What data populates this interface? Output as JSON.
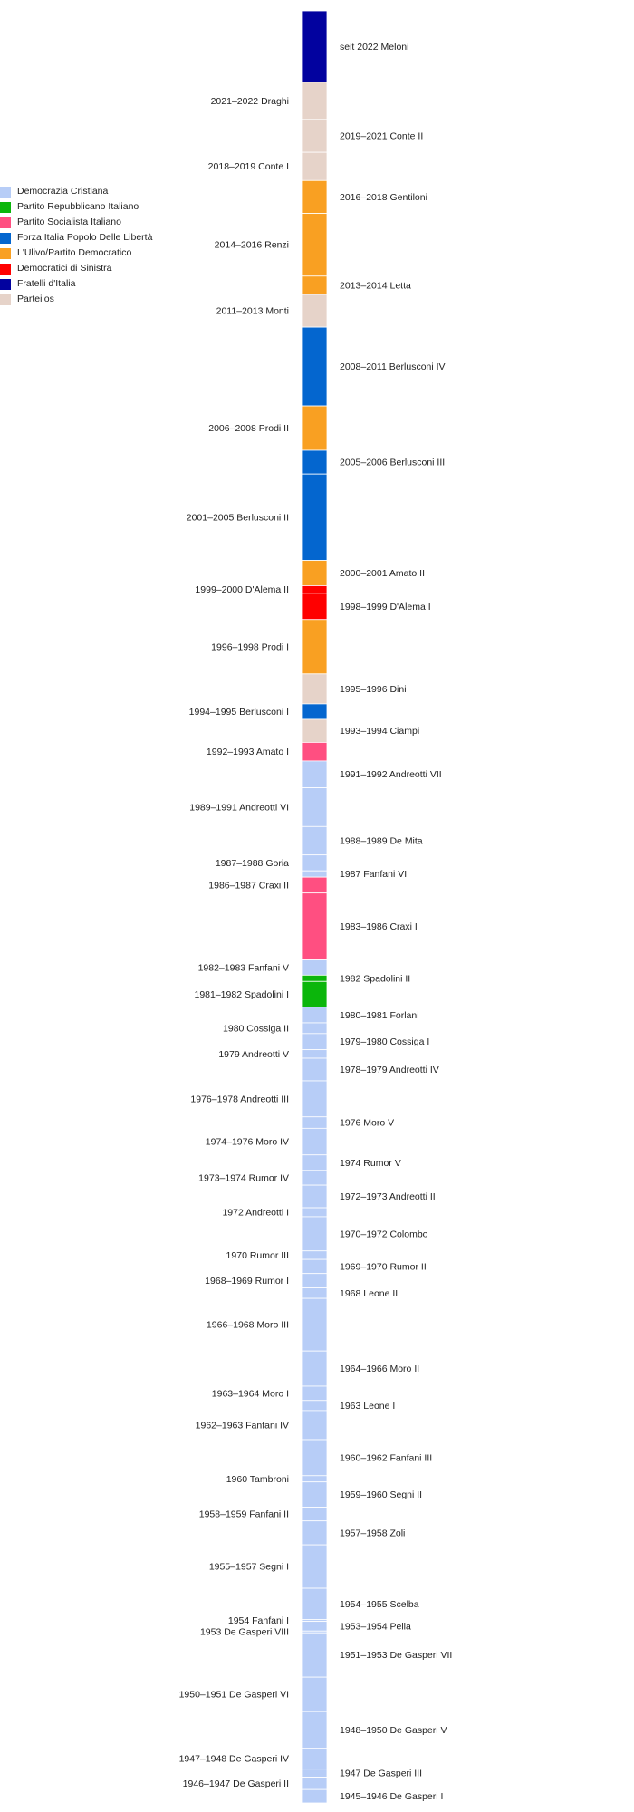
{
  "chart_data": {
    "type": "bar",
    "title": "",
    "xlabel": "",
    "ylabel": "",
    "legend_position": "left",
    "parties": [
      {
        "key": "dc",
        "name": "Democrazia Cristiana",
        "color": "#b7cdf7"
      },
      {
        "key": "pri",
        "name": "Partito Repubblicano Italiano",
        "color": "#0bb60b"
      },
      {
        "key": "psi",
        "name": "Partito Socialista Italiano",
        "color": "#ff4f81"
      },
      {
        "key": "fi",
        "name": "Forza Italia Popolo Delle Libertà",
        "color": "#0466cf"
      },
      {
        "key": "pd",
        "name": "L'Ulivo/Partito Democratico",
        "color": "#f9a022"
      },
      {
        "key": "ds",
        "name": "Democratici di Sinistra",
        "color": "#ff0000"
      },
      {
        "key": "fdi",
        "name": "Fratelli d'Italia",
        "color": "#02029f"
      },
      {
        "key": "np",
        "name": "Parteilos",
        "color": "#e6d3c9"
      }
    ],
    "governments": [
      {
        "label": "seit 2022 Meloni",
        "party": "fdi",
        "start": 2022.81,
        "end": 2026.0,
        "side": "right"
      },
      {
        "label": "2021–2022 Draghi",
        "party": "np",
        "start": 2021.15,
        "end": 2022.81,
        "side": "left"
      },
      {
        "label": "2019–2021 Conte II",
        "party": "np",
        "start": 2019.68,
        "end": 2021.15,
        "side": "right"
      },
      {
        "label": "2018–2019 Conte I",
        "party": "np",
        "start": 2018.42,
        "end": 2019.68,
        "side": "left"
      },
      {
        "label": "2016–2018 Gentiloni",
        "party": "pd",
        "start": 2016.95,
        "end": 2018.42,
        "side": "right"
      },
      {
        "label": "2014–2016 Renzi",
        "party": "pd",
        "start": 2014.15,
        "end": 2016.95,
        "side": "left"
      },
      {
        "label": "2013–2014 Letta",
        "party": "pd",
        "start": 2013.33,
        "end": 2014.15,
        "side": "right"
      },
      {
        "label": "2011–2013 Monti",
        "party": "np",
        "start": 2011.87,
        "end": 2013.33,
        "side": "left"
      },
      {
        "label": "2008–2011 Berlusconi IV",
        "party": "fi",
        "start": 2008.35,
        "end": 2011.87,
        "side": "right"
      },
      {
        "label": "2006–2008 Prodi II",
        "party": "pd",
        "start": 2006.37,
        "end": 2008.35,
        "side": "left"
      },
      {
        "label": "2005–2006 Berlusconi III",
        "party": "fi",
        "start": 2005.31,
        "end": 2006.37,
        "side": "right"
      },
      {
        "label": "2001–2005 Berlusconi II",
        "party": "fi",
        "start": 2001.45,
        "end": 2005.31,
        "side": "left"
      },
      {
        "label": "2000–2001 Amato II",
        "party": "pd",
        "start": 2000.32,
        "end": 2001.45,
        "side": "right"
      },
      {
        "label": "1999–2000 D'Alema II",
        "party": "ds",
        "start": 1999.98,
        "end": 2000.32,
        "side": "left"
      },
      {
        "label": "1998–1999 D'Alema I",
        "party": "ds",
        "start": 1998.81,
        "end": 1999.98,
        "side": "right"
      },
      {
        "label": "1996–1998 Prodi I",
        "party": "pd",
        "start": 1996.38,
        "end": 1998.81,
        "side": "left"
      },
      {
        "label": "1995–1996 Dini",
        "party": "np",
        "start": 1995.04,
        "end": 1996.38,
        "side": "right"
      },
      {
        "label": "1994–1995 Berlusconi I",
        "party": "fi",
        "start": 1994.35,
        "end": 1995.04,
        "side": "left"
      },
      {
        "label": "1993–1994 Ciampi",
        "party": "np",
        "start": 1993.32,
        "end": 1994.35,
        "side": "right"
      },
      {
        "label": "1992–1993 Amato I",
        "party": "psi",
        "start": 1992.49,
        "end": 1993.32,
        "side": "left"
      },
      {
        "label": "1991–1992 Andreotti VII",
        "party": "dc",
        "start": 1991.29,
        "end": 1992.49,
        "side": "right"
      },
      {
        "label": "1989–1991 Andreotti VI",
        "party": "dc",
        "start": 1989.56,
        "end": 1991.29,
        "side": "left"
      },
      {
        "label": "1988–1989 De Mita",
        "party": "dc",
        "start": 1988.29,
        "end": 1989.56,
        "side": "right"
      },
      {
        "label": "1987–1988 Goria",
        "party": "dc",
        "start": 1987.58,
        "end": 1988.29,
        "side": "left"
      },
      {
        "label": "1987 Fanfani VI",
        "party": "dc",
        "start": 1987.3,
        "end": 1987.58,
        "side": "right"
      },
      {
        "label": "1986–1987 Craxi II",
        "party": "psi",
        "start": 1986.59,
        "end": 1987.3,
        "side": "left"
      },
      {
        "label": "1983–1986 Craxi I",
        "party": "psi",
        "start": 1983.6,
        "end": 1986.59,
        "side": "right"
      },
      {
        "label": "1982–1983 Fanfani V",
        "party": "dc",
        "start": 1982.92,
        "end": 1983.6,
        "side": "left"
      },
      {
        "label": "1982 Spadolini II",
        "party": "pri",
        "start": 1982.64,
        "end": 1982.92,
        "side": "right"
      },
      {
        "label": "1981–1982 Spadolini I",
        "party": "pri",
        "start": 1981.49,
        "end": 1982.64,
        "side": "left"
      },
      {
        "label": "1980–1981 Forlani",
        "party": "dc",
        "start": 1980.79,
        "end": 1981.49,
        "side": "right"
      },
      {
        "label": "1980 Cossiga II",
        "party": "dc",
        "start": 1980.31,
        "end": 1980.79,
        "side": "left"
      },
      {
        "label": "1979–1980 Cossiga I",
        "party": "dc",
        "start": 1979.59,
        "end": 1980.31,
        "side": "right"
      },
      {
        "label": "1979 Andreotti V",
        "party": "dc",
        "start": 1979.21,
        "end": 1979.59,
        "side": "left"
      },
      {
        "label": "1978–1979 Andreotti IV",
        "party": "dc",
        "start": 1978.2,
        "end": 1979.21,
        "side": "right"
      },
      {
        "label": "1976–1978 Andreotti III",
        "party": "dc",
        "start": 1976.59,
        "end": 1978.2,
        "side": "left"
      },
      {
        "label": "1976 Moro V",
        "party": "dc",
        "start": 1976.08,
        "end": 1976.59,
        "side": "right"
      },
      {
        "label": "1974–1976 Moro IV",
        "party": "dc",
        "start": 1974.89,
        "end": 1976.08,
        "side": "left"
      },
      {
        "label": "1974 Rumor V",
        "party": "dc",
        "start": 1974.2,
        "end": 1974.89,
        "side": "right"
      },
      {
        "label": "1973–1974 Rumor IV",
        "party": "dc",
        "start": 1973.54,
        "end": 1974.2,
        "side": "left"
      },
      {
        "label": "1972–1973 Andreotti II",
        "party": "dc",
        "start": 1972.53,
        "end": 1973.54,
        "side": "right"
      },
      {
        "label": "1972 Andreotti I",
        "party": "dc",
        "start": 1972.13,
        "end": 1972.53,
        "side": "left"
      },
      {
        "label": "1970–1972 Colombo",
        "party": "dc",
        "start": 1970.6,
        "end": 1972.13,
        "side": "right"
      },
      {
        "label": "1970 Rumor III",
        "party": "dc",
        "start": 1970.22,
        "end": 1970.6,
        "side": "left"
      },
      {
        "label": "1969–1970 Rumor II",
        "party": "dc",
        "start": 1969.59,
        "end": 1970.22,
        "side": "right"
      },
      {
        "label": "1968–1969 Rumor I",
        "party": "dc",
        "start": 1968.95,
        "end": 1969.59,
        "side": "left"
      },
      {
        "label": "1968 Leone II",
        "party": "dc",
        "start": 1968.48,
        "end": 1968.95,
        "side": "right"
      },
      {
        "label": "1966–1968 Moro III",
        "party": "dc",
        "start": 1966.13,
        "end": 1968.48,
        "side": "left"
      },
      {
        "label": "1964–1966 Moro II",
        "party": "dc",
        "start": 1964.56,
        "end": 1966.13,
        "side": "right"
      },
      {
        "label": "1963–1964 Moro I",
        "party": "dc",
        "start": 1963.92,
        "end": 1964.56,
        "side": "left"
      },
      {
        "label": "1963 Leone I",
        "party": "dc",
        "start": 1963.47,
        "end": 1963.92,
        "side": "right"
      },
      {
        "label": "1962–1963 Fanfani IV",
        "party": "dc",
        "start": 1962.17,
        "end": 1963.47,
        "side": "left"
      },
      {
        "label": "1960–1962 Fanfani III",
        "party": "dc",
        "start": 1960.56,
        "end": 1962.17,
        "side": "right"
      },
      {
        "label": "1960 Tambroni",
        "party": "dc",
        "start": 1960.28,
        "end": 1960.56,
        "side": "left"
      },
      {
        "label": "1959–1960 Segni II",
        "party": "dc",
        "start": 1959.15,
        "end": 1960.28,
        "side": "right"
      },
      {
        "label": "1958–1959 Fanfani II",
        "party": "dc",
        "start": 1958.54,
        "end": 1959.15,
        "side": "left"
      },
      {
        "label": "1957–1958 Zoli",
        "party": "dc",
        "start": 1957.47,
        "end": 1958.54,
        "side": "right"
      },
      {
        "label": "1955–1957 Segni I",
        "party": "dc",
        "start": 1955.53,
        "end": 1957.47,
        "side": "left"
      },
      {
        "label": "1954–1955 Scelba",
        "party": "dc",
        "start": 1954.13,
        "end": 1955.53,
        "side": "right"
      },
      {
        "label": "1954 Fanfani I",
        "party": "dc",
        "start": 1954.05,
        "end": 1954.13,
        "side": "left"
      },
      {
        "label": "1953–1954 Pella",
        "party": "dc",
        "start": 1953.62,
        "end": 1954.05,
        "side": "right"
      },
      {
        "label": "1953 De Gasperi VIII",
        "party": "dc",
        "start": 1953.54,
        "end": 1953.62,
        "side": "left"
      },
      {
        "label": "1951–1953 De Gasperi VII",
        "party": "dc",
        "start": 1951.56,
        "end": 1953.54,
        "side": "right"
      },
      {
        "label": "1950–1951 De Gasperi VI",
        "party": "dc",
        "start": 1950.02,
        "end": 1951.56,
        "side": "left"
      },
      {
        "label": "1948–1950 De Gasperi V",
        "party": "dc",
        "start": 1948.38,
        "end": 1950.02,
        "side": "right"
      },
      {
        "label": "1947–1948 De Gasperi IV",
        "party": "dc",
        "start": 1947.45,
        "end": 1948.38,
        "side": "left"
      },
      {
        "label": "1947 De Gasperi III",
        "party": "dc",
        "start": 1947.09,
        "end": 1947.45,
        "side": "right"
      },
      {
        "label": "1946–1947 De Gasperi II",
        "party": "dc",
        "start": 1946.54,
        "end": 1947.09,
        "side": "left"
      },
      {
        "label": "1945–1946 De Gasperi I",
        "party": "dc",
        "start": 1945.94,
        "end": 1946.54,
        "side": "right"
      }
    ]
  }
}
